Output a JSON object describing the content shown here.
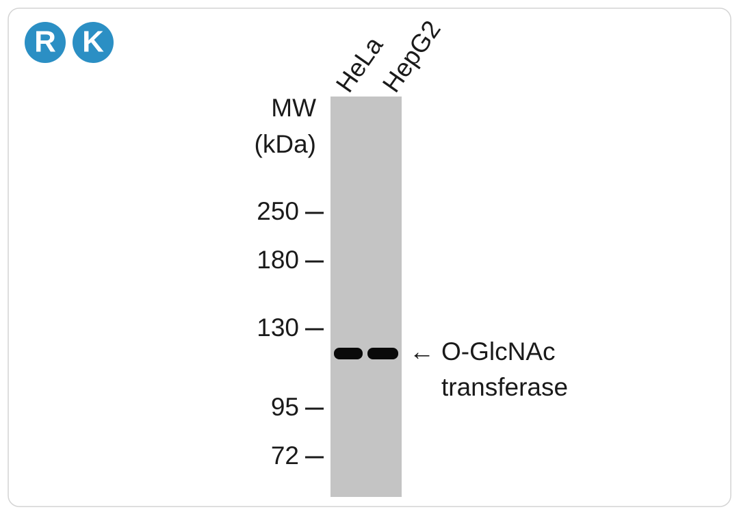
{
  "logo": {
    "letters": [
      "R",
      "K"
    ]
  },
  "lanes": [
    "HeLa",
    "HepG2"
  ],
  "mw_label": [
    "MW",
    "(kDa)"
  ],
  "markers": [
    "250",
    "180",
    "130",
    "95",
    "72"
  ],
  "arrow": "←",
  "band_label": [
    "O-GlcNAc",
    "transferase"
  ]
}
